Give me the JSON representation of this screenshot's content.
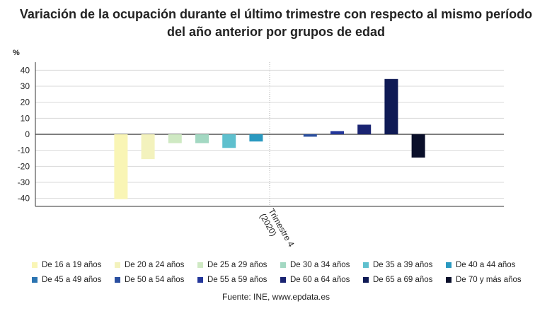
{
  "title_lines": [
    "Variación de la ocupación durante el último trimestre con respecto al mismo período",
    "del año anterior por grupos de edad"
  ],
  "source": "Fuente: INE, www.epdata.es",
  "chart_data": {
    "type": "bar",
    "title": "Variación de la ocupación durante el último trimestre con respecto al mismo período del año anterior por grupos de edad",
    "ylabel": "%",
    "ylim": [
      -45,
      45
    ],
    "yticks": [
      40,
      30,
      20,
      10,
      0,
      -10,
      -20,
      -30,
      -40
    ],
    "grid": true,
    "legend_placement": "bottom",
    "categories": [
      "Trimestre 4 (2020)"
    ],
    "category_label_lines": [
      "Trimestre 4",
      "(2020)"
    ],
    "series": [
      {
        "name": "De 16 a 19 años",
        "values": [
          -40.5
        ],
        "color": "#f9f5b5"
      },
      {
        "name": "De 20 a 24 años",
        "values": [
          -15.5
        ],
        "color": "#f3f2bd"
      },
      {
        "name": "De 25 a 29 años",
        "values": [
          -5.5
        ],
        "color": "#cfe9c3"
      },
      {
        "name": "De 30 a 34 años",
        "values": [
          -5.5
        ],
        "color": "#a3d8c2"
      },
      {
        "name": "De 35 a 39 años",
        "values": [
          -8.5
        ],
        "color": "#5fc0ce"
      },
      {
        "name": "De 40 a 44 años",
        "values": [
          -4.5
        ],
        "color": "#2a99c0"
      },
      {
        "name": "De 45 a 49 años",
        "values": [
          0
        ],
        "color": "#2b74b1"
      },
      {
        "name": "De 50 a 54 años",
        "values": [
          -1.5
        ],
        "color": "#2a4fa0"
      },
      {
        "name": "De 55 a 59 años",
        "values": [
          2.0
        ],
        "color": "#23369a"
      },
      {
        "name": "De 60 a 64 años",
        "values": [
          6.0
        ],
        "color": "#1a2472"
      },
      {
        "name": "De 65 a 69 años",
        "values": [
          34.5
        ],
        "color": "#0f1a55"
      },
      {
        "name": "De 70 y más años",
        "values": [
          -14.5
        ],
        "color": "#0a0f2a"
      }
    ]
  }
}
